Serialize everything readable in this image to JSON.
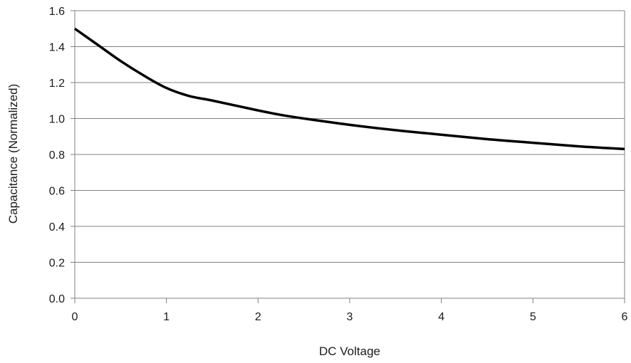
{
  "chart_data": {
    "type": "line",
    "title": "",
    "xlabel": "DC Voltage",
    "ylabel": "Capacitance (Normalized)",
    "xlim": [
      0,
      6
    ],
    "ylim": [
      0.0,
      1.6
    ],
    "x_ticks": [
      "0",
      "1",
      "2",
      "3",
      "4",
      "5",
      "6"
    ],
    "y_ticks": [
      "0.0",
      "0.2",
      "0.4",
      "0.6",
      "0.8",
      "1.0",
      "1.2",
      "1.4",
      "1.6"
    ],
    "grid": "horizontal",
    "legend": "none",
    "colors": {
      "line": "#000000",
      "grid": "#808080",
      "axis": "#808080"
    },
    "series": [
      {
        "x": [
          0,
          0.25,
          0.5,
          0.75,
          1.0,
          1.25,
          1.5,
          2.0,
          2.25,
          2.5,
          3.0,
          3.5,
          4.0,
          4.5,
          5.0,
          5.5,
          6.0
        ],
        "y": [
          1.5,
          1.41,
          1.32,
          1.24,
          1.17,
          1.125,
          1.1,
          1.045,
          1.02,
          1.0,
          0.965,
          0.935,
          0.91,
          0.885,
          0.865,
          0.845,
          0.83
        ]
      }
    ]
  }
}
